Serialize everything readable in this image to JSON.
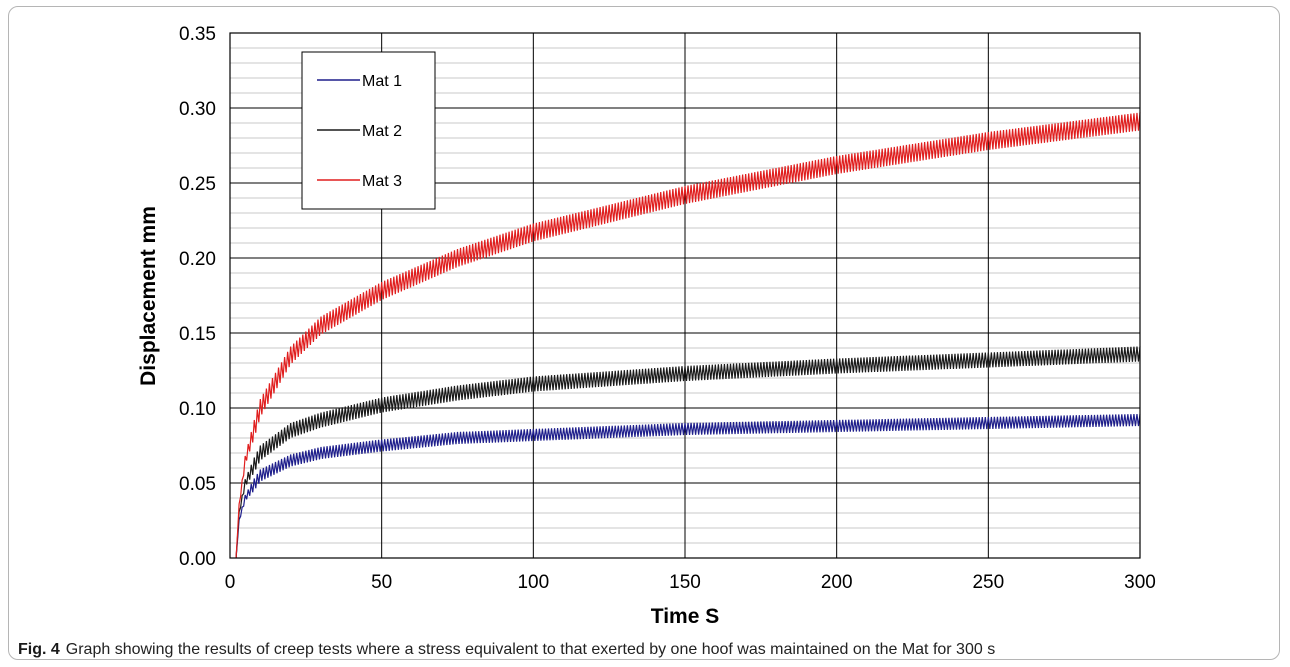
{
  "figure": {
    "label": "Fig. 4",
    "caption": "Graph showing the results of creep tests where a stress equivalent to that exerted by one hoof was maintained on the Mat for 300 s"
  },
  "chart_data": {
    "type": "line",
    "title": "",
    "xlabel": "Time S",
    "ylabel": "Displacement mm",
    "xlim": [
      0,
      300
    ],
    "ylim": [
      0,
      0.35
    ],
    "x_ticks": [
      "0",
      "50",
      "100",
      "150",
      "200",
      "250",
      "300"
    ],
    "y_ticks": [
      "0.00",
      "0.05",
      "0.10",
      "0.15",
      "0.20",
      "0.25",
      "0.30",
      "0.35"
    ],
    "major_grid": true,
    "minor_grid_y_step": 0.01,
    "legend_position": "top-left",
    "series": [
      {
        "name": "Mat 1",
        "color": "#1f1f8c",
        "x": [
          2,
          3,
          5,
          10,
          20,
          30,
          50,
          75,
          100,
          150,
          200,
          250,
          300
        ],
        "y": [
          0,
          0.025,
          0.04,
          0.055,
          0.065,
          0.07,
          0.075,
          0.08,
          0.082,
          0.086,
          0.088,
          0.09,
          0.092
        ],
        "oscillation_amplitude": 0.004
      },
      {
        "name": "Mat 2",
        "color": "#1a1a1a",
        "x": [
          2,
          3,
          5,
          10,
          20,
          30,
          50,
          75,
          100,
          150,
          200,
          250,
          300
        ],
        "y": [
          0,
          0.03,
          0.05,
          0.07,
          0.085,
          0.092,
          0.102,
          0.11,
          0.116,
          0.123,
          0.128,
          0.132,
          0.136
        ],
        "oscillation_amplitude": 0.005
      },
      {
        "name": "Mat 3",
        "color": "#e01e1e",
        "x": [
          2,
          3,
          5,
          10,
          20,
          30,
          50,
          75,
          100,
          150,
          200,
          250,
          300
        ],
        "y": [
          0,
          0.035,
          0.065,
          0.1,
          0.135,
          0.155,
          0.178,
          0.2,
          0.217,
          0.242,
          0.262,
          0.278,
          0.291
        ],
        "oscillation_amplitude": 0.006
      }
    ]
  }
}
